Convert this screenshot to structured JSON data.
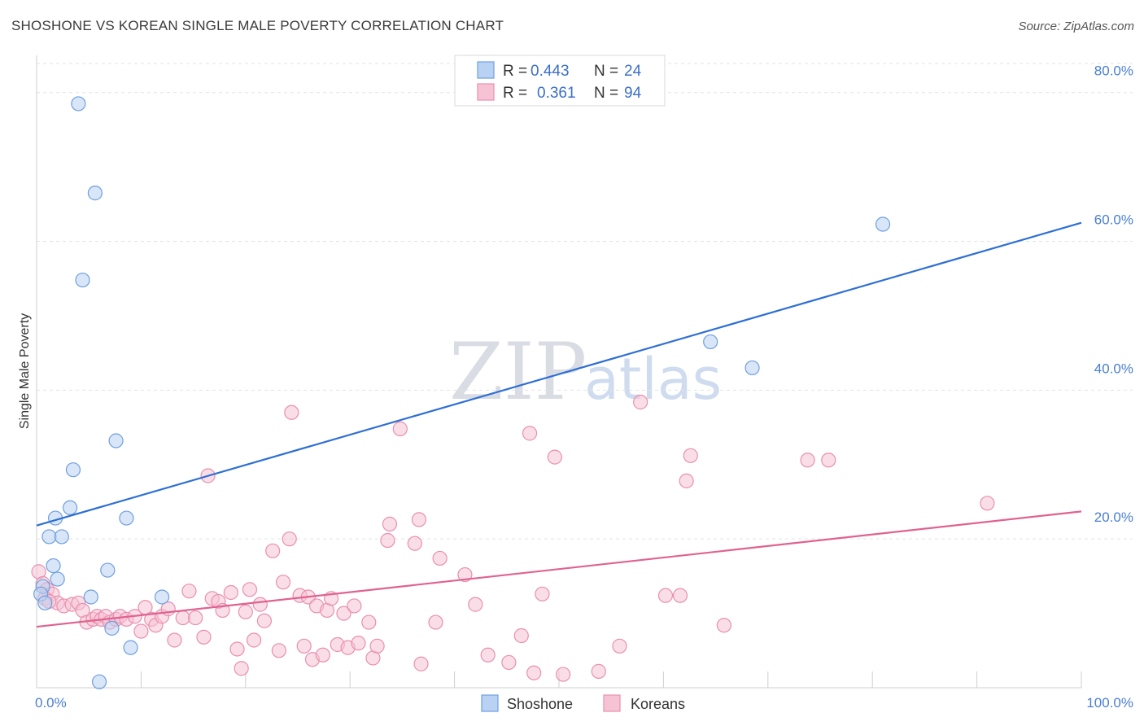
{
  "header": {
    "title": "SHOSHONE VS KOREAN SINGLE MALE POVERTY CORRELATION CHART",
    "source": "Source: ZipAtlas.com"
  },
  "watermark": {
    "part1": "ZIP",
    "part2": "atlas"
  },
  "colors": {
    "shoshone_fill": "#b9d2f3",
    "shoshone_stroke": "#6e9fe0",
    "shoshone_line": "#2e6fd4",
    "koreans_fill": "#f6c3d4",
    "koreans_stroke": "#e98fae",
    "koreans_line": "#e0628f",
    "tick_label": "#4a7fd0",
    "grid": "#e3e3e3"
  },
  "legend": {
    "rows": [
      {
        "r_label": "R =",
        "r_value": "0.443",
        "n_label": "N =",
        "n_value": "24"
      },
      {
        "r_label": "R =",
        "r_value": "0.361",
        "n_label": "N =",
        "n_value": "94"
      }
    ]
  },
  "chart_data": {
    "type": "scatter",
    "title": "SHOSHONE VS KOREAN SINGLE MALE POVERTY CORRELATION CHART",
    "xlabel": "",
    "ylabel": "Single Male Poverty",
    "xlim": [
      0,
      100
    ],
    "ylim": [
      0,
      85
    ],
    "y_ticks": [
      20,
      40,
      60,
      80
    ],
    "y_tick_labels": [
      "20.0%",
      "40.0%",
      "60.0%",
      "80.0%"
    ],
    "x_tick_labels": [
      "0.0%",
      "100.0%"
    ],
    "x_minor_ticks": [
      0,
      10,
      20,
      30,
      40,
      50,
      60,
      70,
      80,
      90,
      100
    ],
    "grid": true,
    "legend_position": "top-center",
    "series": [
      {
        "name": "Shoshone",
        "r": 0.443,
        "n": 24,
        "trend": {
          "x": [
            0,
            100
          ],
          "y": [
            21.8,
            62.5
          ]
        },
        "points": [
          {
            "x": 4.0,
            "y": 78.5
          },
          {
            "x": 5.6,
            "y": 66.5
          },
          {
            "x": 4.4,
            "y": 54.8
          },
          {
            "x": 81.0,
            "y": 62.3
          },
          {
            "x": 64.5,
            "y": 46.5
          },
          {
            "x": 68.5,
            "y": 43.0
          },
          {
            "x": 7.6,
            "y": 33.2
          },
          {
            "x": 3.5,
            "y": 29.3
          },
          {
            "x": 3.2,
            "y": 24.2
          },
          {
            "x": 1.8,
            "y": 22.8
          },
          {
            "x": 8.6,
            "y": 22.8
          },
          {
            "x": 1.2,
            "y": 20.3
          },
          {
            "x": 2.4,
            "y": 20.3
          },
          {
            "x": 1.6,
            "y": 16.4
          },
          {
            "x": 6.8,
            "y": 15.8
          },
          {
            "x": 2.0,
            "y": 14.6
          },
          {
            "x": 0.6,
            "y": 13.6
          },
          {
            "x": 0.4,
            "y": 12.6
          },
          {
            "x": 5.2,
            "y": 12.2
          },
          {
            "x": 12.0,
            "y": 12.2
          },
          {
            "x": 0.8,
            "y": 11.4
          },
          {
            "x": 7.2,
            "y": 8.0
          },
          {
            "x": 9.0,
            "y": 5.4
          },
          {
            "x": 6.0,
            "y": 0.8
          }
        ]
      },
      {
        "name": "Koreans",
        "r": 0.361,
        "n": 94,
        "trend": {
          "x": [
            0,
            100
          ],
          "y": [
            8.2,
            23.7
          ]
        },
        "points": [
          {
            "x": 0.2,
            "y": 15.6
          },
          {
            "x": 0.6,
            "y": 14.0
          },
          {
            "x": 1.0,
            "y": 13.2
          },
          {
            "x": 1.5,
            "y": 12.6
          },
          {
            "x": 2.0,
            "y": 11.4
          },
          {
            "x": 2.6,
            "y": 11.0
          },
          {
            "x": 3.4,
            "y": 11.2
          },
          {
            "x": 4.0,
            "y": 11.4
          },
          {
            "x": 4.4,
            "y": 10.4
          },
          {
            "x": 4.8,
            "y": 8.8
          },
          {
            "x": 5.4,
            "y": 9.2
          },
          {
            "x": 5.8,
            "y": 9.6
          },
          {
            "x": 6.2,
            "y": 9.2
          },
          {
            "x": 6.6,
            "y": 9.6
          },
          {
            "x": 7.0,
            "y": 8.8
          },
          {
            "x": 7.6,
            "y": 9.2
          },
          {
            "x": 8.0,
            "y": 9.6
          },
          {
            "x": 8.6,
            "y": 9.2
          },
          {
            "x": 9.4,
            "y": 9.6
          },
          {
            "x": 10.0,
            "y": 7.6
          },
          {
            "x": 10.4,
            "y": 10.8
          },
          {
            "x": 11.0,
            "y": 9.2
          },
          {
            "x": 11.4,
            "y": 8.4
          },
          {
            "x": 12.0,
            "y": 9.6
          },
          {
            "x": 12.6,
            "y": 10.6
          },
          {
            "x": 13.2,
            "y": 6.4
          },
          {
            "x": 14.0,
            "y": 9.4
          },
          {
            "x": 14.6,
            "y": 13.0
          },
          {
            "x": 15.2,
            "y": 9.4
          },
          {
            "x": 16.0,
            "y": 6.8
          },
          {
            "x": 16.4,
            "y": 28.5
          },
          {
            "x": 16.8,
            "y": 12.0
          },
          {
            "x": 17.4,
            "y": 11.6
          },
          {
            "x": 17.8,
            "y": 10.4
          },
          {
            "x": 18.6,
            "y": 12.8
          },
          {
            "x": 19.2,
            "y": 5.2
          },
          {
            "x": 19.6,
            "y": 2.6
          },
          {
            "x": 20.0,
            "y": 10.2
          },
          {
            "x": 20.4,
            "y": 13.2
          },
          {
            "x": 20.8,
            "y": 6.4
          },
          {
            "x": 21.4,
            "y": 11.2
          },
          {
            "x": 21.8,
            "y": 9.0
          },
          {
            "x": 22.6,
            "y": 18.4
          },
          {
            "x": 23.2,
            "y": 5.0
          },
          {
            "x": 23.6,
            "y": 14.2
          },
          {
            "x": 24.2,
            "y": 20.0
          },
          {
            "x": 24.4,
            "y": 37.0
          },
          {
            "x": 25.2,
            "y": 12.4
          },
          {
            "x": 25.6,
            "y": 5.6
          },
          {
            "x": 26.0,
            "y": 12.2
          },
          {
            "x": 26.4,
            "y": 3.8
          },
          {
            "x": 26.8,
            "y": 11.0
          },
          {
            "x": 27.4,
            "y": 4.4
          },
          {
            "x": 27.8,
            "y": 10.4
          },
          {
            "x": 28.2,
            "y": 12.0
          },
          {
            "x": 28.8,
            "y": 5.8
          },
          {
            "x": 29.4,
            "y": 10.0
          },
          {
            "x": 29.8,
            "y": 5.4
          },
          {
            "x": 30.4,
            "y": 11.0
          },
          {
            "x": 30.8,
            "y": 6.0
          },
          {
            "x": 31.8,
            "y": 8.8
          },
          {
            "x": 32.2,
            "y": 4.0
          },
          {
            "x": 32.6,
            "y": 5.6
          },
          {
            "x": 33.6,
            "y": 19.8
          },
          {
            "x": 33.8,
            "y": 22.0
          },
          {
            "x": 34.8,
            "y": 34.8
          },
          {
            "x": 36.2,
            "y": 19.4
          },
          {
            "x": 36.6,
            "y": 22.6
          },
          {
            "x": 36.8,
            "y": 3.2
          },
          {
            "x": 38.2,
            "y": 8.8
          },
          {
            "x": 38.6,
            "y": 17.4
          },
          {
            "x": 41.0,
            "y": 15.2
          },
          {
            "x": 42.0,
            "y": 11.2
          },
          {
            "x": 43.2,
            "y": 4.4
          },
          {
            "x": 45.2,
            "y": 3.4
          },
          {
            "x": 46.4,
            "y": 7.0
          },
          {
            "x": 47.2,
            "y": 34.2
          },
          {
            "x": 47.6,
            "y": 2.0
          },
          {
            "x": 48.4,
            "y": 12.6
          },
          {
            "x": 49.6,
            "y": 31.0
          },
          {
            "x": 50.4,
            "y": 1.8
          },
          {
            "x": 53.8,
            "y": 2.2
          },
          {
            "x": 55.8,
            "y": 5.6
          },
          {
            "x": 57.8,
            "y": 38.4
          },
          {
            "x": 60.2,
            "y": 12.4
          },
          {
            "x": 61.6,
            "y": 12.4
          },
          {
            "x": 62.2,
            "y": 27.8
          },
          {
            "x": 62.6,
            "y": 31.2
          },
          {
            "x": 65.8,
            "y": 8.4
          },
          {
            "x": 73.8,
            "y": 30.6
          },
          {
            "x": 75.8,
            "y": 30.6
          },
          {
            "x": 91.0,
            "y": 24.8
          },
          {
            "x": 0.8,
            "y": 12.0
          },
          {
            "x": 1.2,
            "y": 11.6
          }
        ]
      }
    ],
    "bottom_legend": [
      "Shoshone",
      "Koreans"
    ]
  }
}
